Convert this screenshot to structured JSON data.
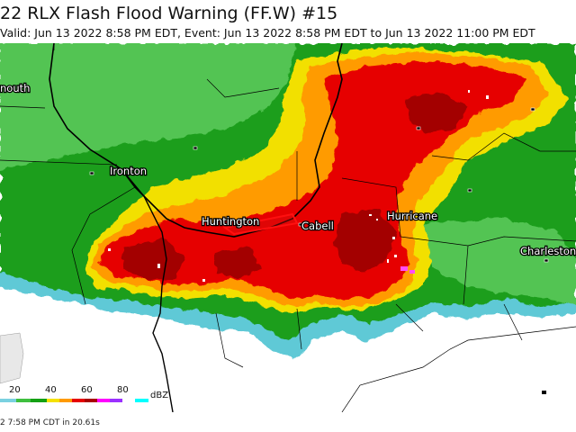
{
  "header": {
    "title": "22 RLX Flash Flood Warning (FF.W) #15",
    "subtitle": "Valid: Jun 13 2022 8:58 PM EDT, Event: Jun 13 2022 8:58 PM EDT to Jun 13 2022 11:00 PM EDT"
  },
  "map": {
    "labels": {
      "portsmouth": "nouth",
      "ironton": "Ironton",
      "huntington": "Huntington",
      "cabell": "Cabell",
      "hurricane": "Hurricane",
      "charleston": "Charleston"
    },
    "warning_color": "#ff0000",
    "radar_colors": {
      "background": "#ffffff",
      "light_green": "#3fbf3f",
      "green": "#14a014",
      "yellow": "#f5e100",
      "orange": "#ff9a00",
      "red": "#e60000",
      "dark_red": "#a80000",
      "magenta": "#ff00ff",
      "cyan": "#4fc8d8"
    }
  },
  "legend": {
    "ticks": [
      "20",
      "40",
      "60",
      "80"
    ],
    "unit": "dBZ"
  },
  "footer": {
    "text": "2 7:58 PM CDT in 20.61s"
  }
}
